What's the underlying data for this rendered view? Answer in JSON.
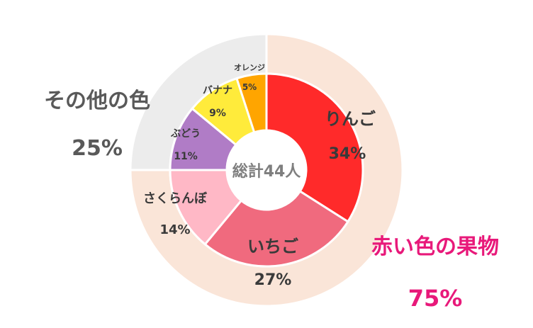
{
  "chart_data": {
    "type": "pie",
    "center_label": "総計44人",
    "outer_ring": [
      {
        "label": "赤い色の果物",
        "percent_label": "75%",
        "value": 75,
        "color": "#FAE5D8",
        "label_color": "#E8197A"
      },
      {
        "label": "その他の色",
        "percent_label": "25%",
        "value": 25,
        "color": "#ECECEC",
        "label_color": "#595959"
      }
    ],
    "inner_ring": [
      {
        "label": "りんご",
        "percent_label": "34%",
        "value": 34,
        "color": "#FF2A2A",
        "label_color": "#3A3A3A"
      },
      {
        "label": "いちご",
        "percent_label": "27%",
        "value": 27,
        "color": "#F06A7E",
        "label_color": "#3A3A3A"
      },
      {
        "label": "さくらんぼ",
        "percent_label": "14%",
        "value": 14,
        "color": "#FFB8C6",
        "label_color": "#3A3A3A"
      },
      {
        "label": "ぶどう",
        "percent_label": "11%",
        "value": 11,
        "color": "#B07CC6",
        "label_color": "#3A3A3A"
      },
      {
        "label": "バナナ",
        "percent_label": "9%",
        "value": 9,
        "color": "#FFEB3B",
        "label_color": "#3A3A3A"
      },
      {
        "label": "オレンジ",
        "percent_label": "5%",
        "value": 5,
        "color": "#FFA500",
        "label_color": "#3A3A3A"
      }
    ]
  }
}
